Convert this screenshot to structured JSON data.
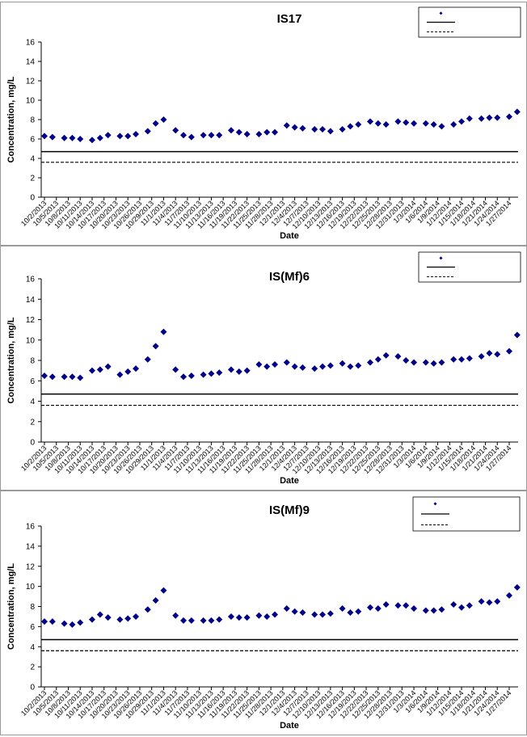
{
  "chart_data": [
    {
      "type": "scatter",
      "title": "IS17",
      "xlabel": "Date",
      "ylabel": "Concentration, mg/L",
      "ylim": [
        0,
        16
      ],
      "yticks": [
        0,
        2,
        4,
        6,
        8,
        10,
        12,
        14,
        16
      ],
      "grid": false,
      "legend_position": "top-right",
      "tick_labels": [
        "10/2/2013",
        "10/5/2013",
        "10/8/2013",
        "10/11/2013",
        "10/14/2013",
        "10/17/2013",
        "10/20/2013",
        "10/23/2013",
        "10/26/2013",
        "10/29/2013",
        "11/1/2013",
        "11/4/2013",
        "11/7/2013",
        "11/10/2013",
        "11/13/2013",
        "11/16/2013",
        "11/19/2013",
        "11/22/2013",
        "11/25/2013",
        "11/28/2013",
        "12/1/2013",
        "12/4/2013",
        "12/7/2013",
        "12/10/2013",
        "12/13/2013",
        "12/16/2013",
        "12/19/2013",
        "12/22/2013",
        "12/25/2013",
        "12/28/2013",
        "12/31/2013",
        "1/3/2014",
        "1/6/2014",
        "1/9/2014",
        "1/12/2014",
        "1/15/2014",
        "1/18/2014",
        "1/21/2014",
        "1/24/2014",
        "1/27/2014"
      ],
      "series": [
        {
          "type": "scatter",
          "marker": "diamond",
          "color": "#00008b",
          "x": [
            "10/2/2013",
            "10/4/2013",
            "10/7/2013",
            "10/9/2013",
            "10/11/2013",
            "10/14/2013",
            "10/16/2013",
            "10/18/2013",
            "10/21/2013",
            "10/23/2013",
            "10/25/2013",
            "10/28/2013",
            "10/30/2013",
            "11/1/2013",
            "11/4/2013",
            "11/6/2013",
            "11/8/2013",
            "11/11/2013",
            "11/13/2013",
            "11/15/2013",
            "11/18/2013",
            "11/20/2013",
            "11/22/2013",
            "11/25/2013",
            "11/27/2013",
            "11/29/2013",
            "12/2/2013",
            "12/4/2013",
            "12/6/2013",
            "12/9/2013",
            "12/11/2013",
            "12/13/2013",
            "12/16/2013",
            "12/18/2013",
            "12/20/2013",
            "12/23/2013",
            "12/25/2013",
            "12/27/2013",
            "12/30/2013",
            "1/1/2014",
            "1/3/2014",
            "1/6/2014",
            "1/8/2014",
            "1/10/2014",
            "1/13/2014",
            "1/15/2014",
            "1/17/2014",
            "1/20/2014",
            "1/22/2014",
            "1/24/2014",
            "1/27/2014",
            "1/29/2014"
          ],
          "y": [
            6.3,
            6.2,
            6.1,
            6.1,
            6.0,
            5.9,
            6.1,
            6.4,
            6.3,
            6.3,
            6.5,
            6.8,
            7.6,
            8.0,
            6.9,
            6.4,
            6.2,
            6.4,
            6.4,
            6.4,
            6.9,
            6.7,
            6.5,
            6.5,
            6.7,
            6.7,
            7.4,
            7.2,
            7.1,
            7.0,
            7.0,
            6.8,
            7.0,
            7.3,
            7.5,
            7.8,
            7.6,
            7.5,
            7.8,
            7.7,
            7.6,
            7.6,
            7.5,
            7.3,
            7.5,
            7.8,
            8.1,
            8.1,
            8.2,
            8.2,
            8.3,
            8.8
          ]
        },
        {
          "type": "line",
          "style": "solid",
          "color": "#000000",
          "y": 4.7
        },
        {
          "type": "line",
          "style": "dashed",
          "color": "#000000",
          "y": 3.6
        }
      ]
    },
    {
      "type": "scatter",
      "title": "IS(Mf)6",
      "xlabel": "Date",
      "ylabel": "Concentration, mg/L",
      "ylim": [
        0,
        16
      ],
      "yticks": [
        0,
        2,
        4,
        6,
        8,
        10,
        12,
        14,
        16
      ],
      "grid": false,
      "legend_position": "top-right",
      "tick_labels": [
        "10/2/2013",
        "10/5/2013",
        "10/8/2013",
        "10/11/2013",
        "10/14/2013",
        "10/17/2013",
        "10/20/2013",
        "10/23/2013",
        "10/26/2013",
        "10/29/2013",
        "11/1/2013",
        "11/4/2013",
        "11/7/2013",
        "11/10/2013",
        "11/13/2013",
        "11/16/2013",
        "11/19/2013",
        "11/22/2013",
        "11/25/2013",
        "11/28/2013",
        "12/1/2013",
        "12/4/2013",
        "12/7/2013",
        "12/10/2013",
        "12/13/2013",
        "12/16/2013",
        "12/19/2013",
        "12/22/2013",
        "12/25/2013",
        "12/28/2013",
        "12/31/2013",
        "1/3/2014",
        "1/6/2014",
        "1/9/2014",
        "1/12/2014",
        "1/15/2014",
        "1/18/2014",
        "1/21/2014",
        "1/24/2014",
        "1/27/2014"
      ],
      "series": [
        {
          "type": "scatter",
          "marker": "diamond",
          "color": "#00008b",
          "x": [
            "10/2/2013",
            "10/4/2013",
            "10/7/2013",
            "10/9/2013",
            "10/11/2013",
            "10/14/2013",
            "10/16/2013",
            "10/18/2013",
            "10/21/2013",
            "10/23/2013",
            "10/25/2013",
            "10/28/2013",
            "10/30/2013",
            "11/1/2013",
            "11/4/2013",
            "11/6/2013",
            "11/8/2013",
            "11/11/2013",
            "11/13/2013",
            "11/15/2013",
            "11/18/2013",
            "11/20/2013",
            "11/22/2013",
            "11/25/2013",
            "11/27/2013",
            "11/29/2013",
            "12/2/2013",
            "12/4/2013",
            "12/6/2013",
            "12/9/2013",
            "12/11/2013",
            "12/13/2013",
            "12/16/2013",
            "12/18/2013",
            "12/20/2013",
            "12/23/2013",
            "12/25/2013",
            "12/27/2013",
            "12/30/2013",
            "1/1/2014",
            "1/3/2014",
            "1/6/2014",
            "1/8/2014",
            "1/10/2014",
            "1/13/2014",
            "1/15/2014",
            "1/17/2014",
            "1/20/2014",
            "1/22/2014",
            "1/24/2014",
            "1/27/2014",
            "1/29/2014"
          ],
          "y": [
            6.5,
            6.4,
            6.4,
            6.4,
            6.3,
            7.0,
            7.1,
            7.4,
            6.6,
            6.9,
            7.2,
            8.1,
            9.4,
            10.8,
            7.1,
            6.4,
            6.5,
            6.6,
            6.7,
            6.8,
            7.1,
            6.9,
            7.0,
            7.6,
            7.4,
            7.6,
            7.8,
            7.4,
            7.3,
            7.2,
            7.4,
            7.5,
            7.7,
            7.4,
            7.5,
            7.8,
            8.1,
            8.5,
            8.4,
            8.0,
            7.8,
            7.8,
            7.7,
            7.8,
            8.1,
            8.1,
            8.2,
            8.4,
            8.7,
            8.6,
            8.9,
            10.5
          ]
        },
        {
          "type": "line",
          "style": "solid",
          "color": "#000000",
          "y": 4.7
        },
        {
          "type": "line",
          "style": "dashed",
          "color": "#000000",
          "y": 3.6
        }
      ]
    },
    {
      "type": "scatter",
      "title": "IS(Mf)9",
      "xlabel": "Date",
      "ylabel": "Concentration, mg/L",
      "ylim": [
        0,
        16
      ],
      "yticks": [
        0,
        2,
        4,
        6,
        8,
        10,
        12,
        14,
        16
      ],
      "grid": false,
      "legend_position": "top-right",
      "tick_labels": [
        "10/2/2013",
        "10/5/2013",
        "10/8/2013",
        "10/11/2013",
        "10/14/2013",
        "10/17/2013",
        "10/20/2013",
        "10/23/2013",
        "10/26/2013",
        "10/29/2013",
        "11/1/2013",
        "11/4/2013",
        "11/7/2013",
        "11/10/2013",
        "11/13/2013",
        "11/16/2013",
        "11/19/2013",
        "11/22/2013",
        "11/25/2013",
        "11/28/2013",
        "12/1/2013",
        "12/4/2013",
        "12/7/2013",
        "12/10/2013",
        "12/13/2013",
        "12/16/2013",
        "12/19/2013",
        "12/22/2013",
        "12/25/2013",
        "12/28/2013",
        "12/31/2013",
        "1/3/2014",
        "1/6/2014",
        "1/9/2014",
        "1/12/2014",
        "1/15/2014",
        "1/18/2014",
        "1/21/2014",
        "1/24/2014",
        "1/27/2014"
      ],
      "series": [
        {
          "type": "scatter",
          "marker": "diamond",
          "color": "#00008b",
          "x": [
            "10/2/2013",
            "10/4/2013",
            "10/7/2013",
            "10/9/2013",
            "10/11/2013",
            "10/14/2013",
            "10/16/2013",
            "10/18/2013",
            "10/21/2013",
            "10/23/2013",
            "10/25/2013",
            "10/28/2013",
            "10/30/2013",
            "11/1/2013",
            "11/4/2013",
            "11/6/2013",
            "11/8/2013",
            "11/11/2013",
            "11/13/2013",
            "11/15/2013",
            "11/18/2013",
            "11/20/2013",
            "11/22/2013",
            "11/25/2013",
            "11/27/2013",
            "11/29/2013",
            "12/2/2013",
            "12/4/2013",
            "12/6/2013",
            "12/9/2013",
            "12/11/2013",
            "12/13/2013",
            "12/16/2013",
            "12/18/2013",
            "12/20/2013",
            "12/23/2013",
            "12/25/2013",
            "12/27/2013",
            "12/30/2013",
            "1/1/2014",
            "1/3/2014",
            "1/6/2014",
            "1/8/2014",
            "1/10/2014",
            "1/13/2014",
            "1/15/2014",
            "1/17/2014",
            "1/20/2014",
            "1/22/2014",
            "1/24/2014",
            "1/27/2014",
            "1/29/2014"
          ],
          "y": [
            6.5,
            6.5,
            6.3,
            6.2,
            6.4,
            6.7,
            7.2,
            6.9,
            6.7,
            6.8,
            7.0,
            7.7,
            8.6,
            9.6,
            7.1,
            6.6,
            6.6,
            6.6,
            6.6,
            6.7,
            7.0,
            6.9,
            6.9,
            7.1,
            7.0,
            7.2,
            7.8,
            7.5,
            7.4,
            7.2,
            7.2,
            7.3,
            7.8,
            7.4,
            7.5,
            7.9,
            7.8,
            8.2,
            8.1,
            8.1,
            7.8,
            7.6,
            7.6,
            7.7,
            8.2,
            7.9,
            8.1,
            8.5,
            8.4,
            8.5,
            9.1,
            9.9
          ]
        },
        {
          "type": "line",
          "style": "solid",
          "color": "#000000",
          "y": 4.7
        },
        {
          "type": "line",
          "style": "dashed",
          "color": "#000000",
          "y": 3.6
        }
      ]
    }
  ]
}
